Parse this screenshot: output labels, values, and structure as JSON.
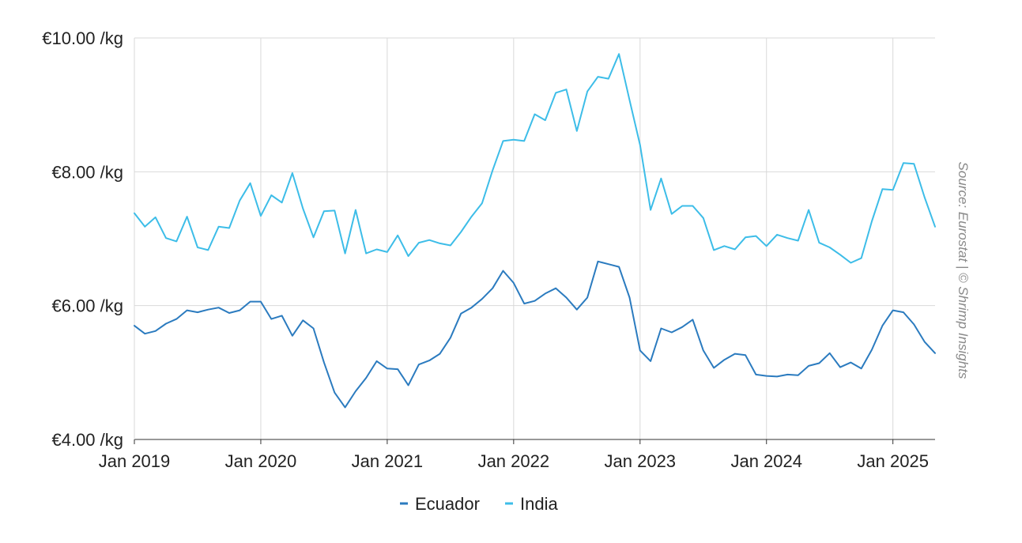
{
  "source_note": "Source: Eurostat | © Shrimp Insights",
  "colors": {
    "ecuador": "#2b7bbf",
    "india": "#3dbde8",
    "grid": "#d9d9d9",
    "axis": "#333333"
  },
  "chart_data": {
    "type": "line",
    "title": "",
    "xlabel": "",
    "ylabel": "",
    "ylim": [
      4,
      10
    ],
    "yticks": [
      {
        "value": 10,
        "label": "€10.00 /kg"
      },
      {
        "value": 8,
        "label": "€8.00 /kg"
      },
      {
        "value": 6,
        "label": "€6.00 /kg"
      },
      {
        "value": 4,
        "label": "€4.00 /kg"
      }
    ],
    "xlim": [
      "2019-01",
      "2025-05"
    ],
    "xticks": [
      {
        "value": "2019-01",
        "label": "Jan 2019"
      },
      {
        "value": "2020-01",
        "label": "Jan 2020"
      },
      {
        "value": "2021-01",
        "label": "Jan 2021"
      },
      {
        "value": "2022-01",
        "label": "Jan 2022"
      },
      {
        "value": "2023-01",
        "label": "Jan 2023"
      },
      {
        "value": "2024-01",
        "label": "Jan 2024"
      },
      {
        "value": "2025-01",
        "label": "Jan 2025"
      }
    ],
    "grid": true,
    "legend_position": "bottom-center",
    "x": [
      "2019-01",
      "2019-02",
      "2019-03",
      "2019-04",
      "2019-05",
      "2019-06",
      "2019-07",
      "2019-08",
      "2019-09",
      "2019-10",
      "2019-11",
      "2019-12",
      "2020-01",
      "2020-02",
      "2020-03",
      "2020-04",
      "2020-05",
      "2020-06",
      "2020-07",
      "2020-08",
      "2020-09",
      "2020-10",
      "2020-11",
      "2020-12",
      "2021-01",
      "2021-02",
      "2021-03",
      "2021-04",
      "2021-05",
      "2021-06",
      "2021-07",
      "2021-08",
      "2021-09",
      "2021-10",
      "2021-11",
      "2021-12",
      "2022-01",
      "2022-02",
      "2022-03",
      "2022-04",
      "2022-05",
      "2022-06",
      "2022-07",
      "2022-08",
      "2022-09",
      "2022-10",
      "2022-11",
      "2022-12",
      "2023-01",
      "2023-02",
      "2023-03",
      "2023-04",
      "2023-05",
      "2023-06",
      "2023-07",
      "2023-08",
      "2023-09",
      "2023-10",
      "2023-11",
      "2023-12",
      "2024-01",
      "2024-02",
      "2024-03",
      "2024-04",
      "2024-05",
      "2024-06",
      "2024-07",
      "2024-08",
      "2024-09",
      "2024-10",
      "2024-11",
      "2024-12",
      "2025-01",
      "2025-02",
      "2025-03",
      "2025-04",
      "2025-05"
    ],
    "series": [
      {
        "name": "Ecuador",
        "color": "#2b7bbf",
        "values": [
          5.7,
          5.58,
          5.62,
          5.73,
          5.8,
          5.93,
          5.9,
          5.94,
          5.97,
          5.89,
          5.93,
          6.06,
          6.06,
          5.8,
          5.85,
          5.55,
          5.78,
          5.66,
          5.15,
          4.7,
          4.48,
          4.72,
          4.92,
          5.17,
          5.06,
          5.05,
          4.81,
          5.12,
          5.18,
          5.28,
          5.52,
          5.88,
          5.97,
          6.1,
          6.26,
          6.52,
          6.34,
          6.03,
          6.07,
          6.18,
          6.26,
          6.12,
          5.94,
          6.12,
          6.66,
          6.62,
          6.58,
          6.12,
          5.33,
          5.17,
          5.66,
          5.6,
          5.68,
          5.79,
          5.33,
          5.07,
          5.19,
          5.28,
          5.26,
          4.97,
          4.95,
          4.94,
          4.97,
          4.96,
          5.1,
          5.14,
          5.29,
          5.08,
          5.15,
          5.06,
          5.34,
          5.7,
          5.93,
          5.9,
          5.72,
          5.46,
          5.29
        ]
      },
      {
        "name": "India",
        "color": "#3dbde8",
        "values": [
          7.38,
          7.18,
          7.32,
          7.01,
          6.96,
          7.33,
          6.87,
          6.83,
          7.18,
          7.16,
          7.57,
          7.83,
          7.34,
          7.65,
          7.54,
          7.98,
          7.45,
          7.02,
          7.41,
          7.42,
          6.78,
          7.43,
          6.78,
          6.84,
          6.8,
          7.05,
          6.74,
          6.94,
          6.98,
          6.93,
          6.9,
          7.1,
          7.33,
          7.53,
          8.02,
          8.46,
          8.48,
          8.46,
          8.86,
          8.77,
          9.18,
          9.23,
          8.61,
          9.2,
          9.42,
          9.39,
          9.76,
          9.07,
          8.4,
          7.43,
          7.9,
          7.37,
          7.49,
          7.49,
          7.31,
          6.83,
          6.89,
          6.84,
          7.02,
          7.04,
          6.89,
          7.06,
          7.01,
          6.97,
          7.43,
          6.94,
          6.87,
          6.76,
          6.64,
          6.71,
          7.26,
          7.74,
          7.73,
          8.13,
          8.12,
          7.62,
          7.18
        ]
      }
    ]
  }
}
